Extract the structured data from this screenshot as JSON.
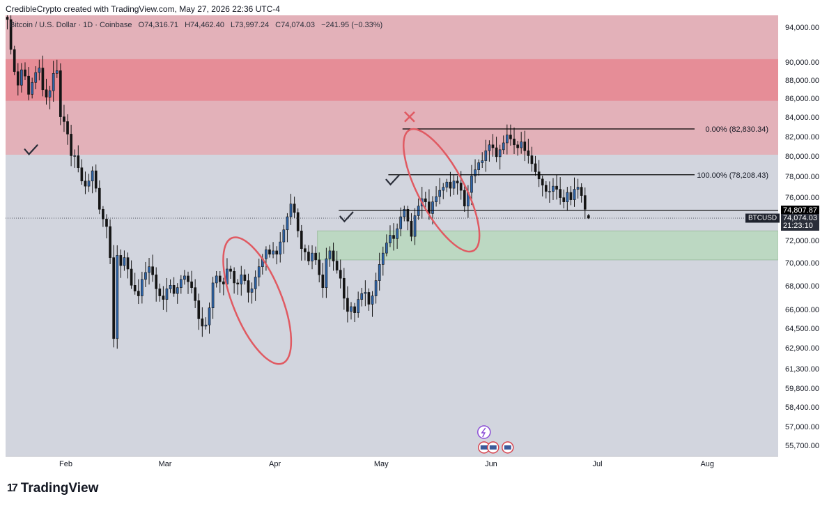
{
  "header": {
    "title": "CredibleCrypto created with TradingView.com, May 27, 2026 22:36 UTC-4"
  },
  "legend": {
    "symbol": "Bitcoin / U.S. Dollar · 1D · Coinbase",
    "open": "O74,316.71",
    "high": "H74,462.40",
    "low": "L73,997.24",
    "close": "C74,074.03",
    "change": "−241.95 (−0.33%)"
  },
  "branding": {
    "logo_text": "TradingView",
    "logo_mark": "17"
  },
  "chart_data": {
    "type": "candlestick",
    "title": "Bitcoin / U.S. Dollar · 1D · Coinbase",
    "x_label": "",
    "y_label": "",
    "y_scale": "log",
    "ylim": [
      55000,
      95500
    ],
    "date_range": [
      "2026-01-15",
      "2026-08-21"
    ],
    "price_ticks": [
      {
        "label": "94,000.00",
        "value": 94000
      },
      {
        "label": "90,000.00",
        "value": 90000
      },
      {
        "label": "88,000.00",
        "value": 88000
      },
      {
        "label": "86,000.00",
        "value": 86000
      },
      {
        "label": "84,000.00",
        "value": 84000
      },
      {
        "label": "82,000.00",
        "value": 82000
      },
      {
        "label": "80,000.00",
        "value": 80000
      },
      {
        "label": "78,000.00",
        "value": 78000
      },
      {
        "label": "76,000.00",
        "value": 76000
      },
      {
        "label": "72,000.00",
        "value": 72000
      },
      {
        "label": "70,000.00",
        "value": 70000
      },
      {
        "label": "68,000.00",
        "value": 68000
      },
      {
        "label": "66,000.00",
        "value": 66000
      },
      {
        "label": "64,500.00",
        "value": 64500
      },
      {
        "label": "62,900.00",
        "value": 62900
      },
      {
        "label": "61,300.00",
        "value": 61300
      },
      {
        "label": "59,800.00",
        "value": 59800
      },
      {
        "label": "58,400.00",
        "value": 58400
      },
      {
        "label": "57,000.00",
        "value": 57000
      },
      {
        "label": "55,700.00",
        "value": 55700
      }
    ],
    "time_ticks": [
      {
        "label": "Feb",
        "date": "2026-02-01"
      },
      {
        "label": "Mar",
        "date": "2026-03-01"
      },
      {
        "label": "Apr",
        "date": "2026-04-01"
      },
      {
        "label": "May",
        "date": "2026-05-01"
      },
      {
        "label": "Jun",
        "date": "2026-06-01"
      },
      {
        "label": "Jul",
        "date": "2026-07-01"
      },
      {
        "label": "Aug",
        "date": "2026-08-01"
      }
    ],
    "close_series": {
      "start_date": "2026-01-15",
      "interval": "1D",
      "closes": [
        95000,
        91500,
        89000,
        87500,
        89200,
        88500,
        86500,
        87800,
        88900,
        89400,
        87000,
        86200,
        86900,
        88800,
        89100,
        84100,
        83600,
        82300,
        80100,
        80100,
        78900,
        77600,
        77100,
        77600,
        78600,
        76900,
        74900,
        74000,
        73300,
        70500,
        63700,
        70700,
        69800,
        70500,
        69500,
        68100,
        67600,
        67200,
        68600,
        69200,
        69700,
        69000,
        67800,
        67200,
        66900,
        67800,
        68100,
        67400,
        67900,
        68600,
        68900,
        68400,
        67900,
        66800,
        65300,
        64700,
        64800,
        66200,
        68300,
        68900,
        68400,
        68200,
        69500,
        69300,
        68300,
        68200,
        69000,
        68500,
        67500,
        67800,
        68800,
        69700,
        70400,
        71200,
        70800,
        71100,
        70800,
        71900,
        73000,
        74200,
        75400,
        74600,
        72900,
        71300,
        71000,
        70200,
        70900,
        70300,
        69000,
        67900,
        70400,
        71100,
        70200,
        69400,
        68700,
        67000,
        65900,
        66300,
        65800,
        66900,
        67400,
        67500,
        66500,
        67200,
        68500,
        69900,
        70900,
        71800,
        72500,
        72200,
        73100,
        74200,
        74900,
        73800,
        72400,
        74300,
        75200,
        75900,
        75600,
        74500,
        75600,
        76100,
        76700,
        77000,
        77500,
        76900,
        77600,
        77400,
        76700,
        75200,
        76500,
        78100,
        78700,
        79400,
        79600,
        80600,
        81200,
        80900,
        80000,
        80700,
        81400,
        82200,
        81800,
        81200,
        80900,
        81500,
        80600,
        80100,
        79300,
        78500,
        77800,
        77200,
        76600,
        76600,
        77100,
        76800,
        76000,
        75600,
        76500,
        75800,
        76800,
        77000,
        76200,
        74900,
        74074.03
      ]
    },
    "last_candle": {
      "open": 74316.71,
      "high": 74462.4,
      "low": 73997.24,
      "close": 74074.03,
      "change": "−241.95 (−0.33%)"
    },
    "zones": [
      {
        "name": "upper-resistance-zone",
        "from": 80200,
        "to": 95500,
        "color": "#e8a4ac"
      },
      {
        "name": "inner-resistance-zone",
        "from": 85800,
        "to": 90400,
        "color": "#e7818c"
      },
      {
        "name": "support-zone",
        "from": 70300,
        "to": 72900,
        "color": "#b4d8b8",
        "start_date": "2026-04-13"
      }
    ],
    "fib_levels": [
      {
        "label": "0.00% (82,830.34)",
        "value": 82830.34,
        "start_date": "2026-05-07"
      },
      {
        "label": "100.00% (78,208.43)",
        "value": 78208.43,
        "start_date": "2026-05-03"
      }
    ],
    "horizontal_level": {
      "value": 74807.87,
      "label": "74,807.87",
      "start_date": "2026-04-19"
    },
    "last_price": {
      "symbol": "BTCUSD",
      "value": "74,074.03",
      "countdown": "21:23:10"
    },
    "annotations": [
      {
        "type": "ellipse",
        "name": "march-pattern-ellipse",
        "center_date": "2026-03-27",
        "center_value": 66800,
        "color": "#e05a62"
      },
      {
        "type": "ellipse",
        "name": "may-pattern-ellipse",
        "center_date": "2026-05-18",
        "center_value": 76700,
        "color": "#e05a62"
      },
      {
        "type": "cross",
        "name": "rejection-cross",
        "date": "2026-05-09",
        "value": 84100,
        "color": "#e05a62"
      },
      {
        "type": "check",
        "name": "check-jan",
        "date": "2026-01-22",
        "value": 80600
      },
      {
        "type": "check",
        "name": "check-apr",
        "date": "2026-04-21",
        "value": 74100
      },
      {
        "type": "check",
        "name": "check-may",
        "date": "2026-05-04",
        "value": 77600
      }
    ],
    "colors": {
      "up": "#2e64a8",
      "down": "#141414",
      "background": "#d2d5de",
      "dotted_last": "#2a2e39"
    }
  }
}
